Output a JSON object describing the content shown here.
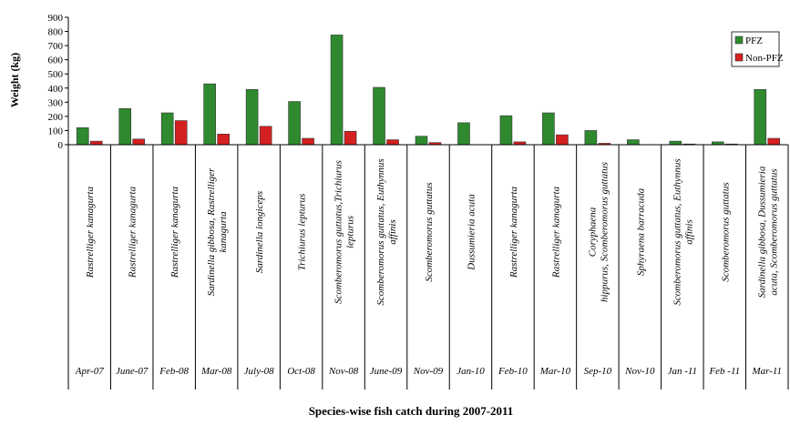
{
  "chart_data": {
    "type": "bar",
    "xlabel": "Species-wise fish catch during 2007-2011",
    "ylabel": "Weight (kg)",
    "ylim": [
      0,
      900
    ],
    "yticks": [
      0,
      100,
      200,
      300,
      400,
      500,
      600,
      700,
      800,
      900
    ],
    "legend_position": "top-right",
    "categories": [
      "Rastrelliger kanagurta",
      "Rastrelliger kanagurta",
      "Rastrelliger kanagurta",
      "Sardinella gibbosa, Rastrelliger kanagurta",
      "Sardinella longiceps",
      "Trichiurus lepturus",
      "Scomberomorus guttatus,Trichiurus lepturus",
      "Scomberomorus guttatus, Euthynnus affinis",
      "Scomberomorus guttatus",
      "Dussumieria acuta",
      "Rastrelliger kanagurta",
      "Rastrelliger kanagurta",
      "Coryphaena hippurus, Scomberomorus guttatus",
      "Sphyraena barracuda",
      "Scomberomorus guttatus, Euthynnus affinis",
      "Scomberomorus guttatus",
      "Sardinella gibbosa, Dussumieria acuta, Scomberomorus guttatus"
    ],
    "category_lines": [
      [
        "Rastrelliger kanagurta"
      ],
      [
        "Rastrelliger kanagurta"
      ],
      [
        "Rastrelliger kanagurta"
      ],
      [
        "Sardinella gibbosa, Rastrelliger",
        "kanagurta"
      ],
      [
        "Sardinella longiceps"
      ],
      [
        "Trichiurus lepturus"
      ],
      [
        "Scomberomorus guttatus,Trichiurus",
        "lepturus"
      ],
      [
        "Scomberomorus guttatus, Euthynnus",
        "affinis"
      ],
      [
        "Scomberomorus guttatus"
      ],
      [
        "Dussumieria acuta"
      ],
      [
        "Rastrelliger kanagurta"
      ],
      [
        "Rastrelliger kanagurta"
      ],
      [
        "Coryphaena",
        "hippurus, Scomberomorus guttatus"
      ],
      [
        "Sphyraena barracuda"
      ],
      [
        "Scomberomorus guttatus, Euthynnus",
        "affinis"
      ],
      [
        "Scomberomorus guttatus"
      ],
      [
        "Sardinella gibbosa, Dussumieria",
        "acuta, Scomberomorus guttatus"
      ]
    ],
    "periods": [
      "Apr-07",
      "June-07",
      "Feb-08",
      "Mar-08",
      "July-08",
      "Oct-08",
      "Nov-08",
      "June-09",
      "Nov-09",
      "Jan-10",
      "Feb-10",
      "Mar-10",
      "Sep-10",
      "Nov-10",
      "Jan -11",
      "Feb -11",
      "Mar-11"
    ],
    "series": [
      {
        "name": "PFZ",
        "color": "#2f8a2f",
        "values": [
          120,
          255,
          225,
          430,
          390,
          305,
          775,
          405,
          60,
          155,
          205,
          225,
          100,
          35,
          25,
          20,
          390
        ]
      },
      {
        "name": "Non-PFZ",
        "color": "#d42020",
        "values": [
          25,
          40,
          170,
          75,
          130,
          45,
          95,
          35,
          15,
          0,
          20,
          70,
          10,
          0,
          5,
          5,
          45
        ]
      }
    ]
  }
}
